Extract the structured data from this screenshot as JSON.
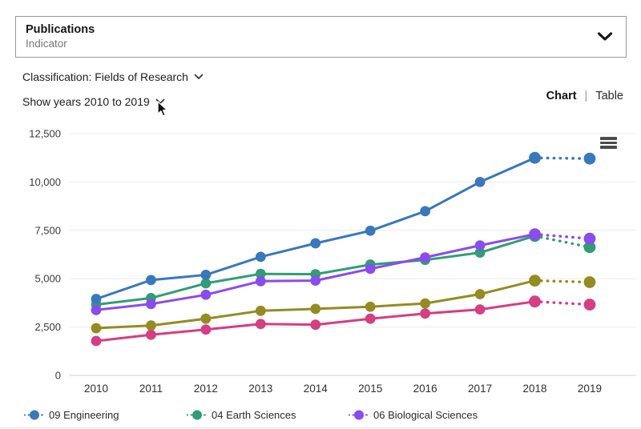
{
  "indicator_panel": {
    "value": "Publications",
    "label": "Indicator"
  },
  "filters": {
    "classification": "Classification: Fields of Research",
    "show_years": "Show years 2010 to 2019"
  },
  "view_toggle": {
    "chart": "Chart",
    "separator": "|",
    "table": "Table",
    "selected": "Chart"
  },
  "icons": {
    "indicator_dropdown": "chevron-down",
    "classification_dropdown": "chevron-down",
    "years_dropdown": "chevron-down",
    "chart_menu": "hamburger-menu",
    "cursor": "arrow-pointer"
  },
  "colors": {
    "grid_line": "#ececec",
    "axis_line": "#ccd3da",
    "menu_icon": "#4b4b4b",
    "border": "#9a9a9a"
  },
  "chart_data": {
    "type": "line",
    "title": "",
    "xlabel": "",
    "ylabel": "",
    "x": [
      2010,
      2011,
      2012,
      2013,
      2014,
      2015,
      2016,
      2017,
      2018,
      2019
    ],
    "yticks": [
      0,
      2500,
      5000,
      7500,
      10000,
      12500
    ],
    "ytick_labels": [
      "0",
      "2,500",
      "5,000",
      "7,500",
      "10,000",
      "12,500"
    ],
    "ylim": [
      0,
      12500
    ],
    "grid": true,
    "legend_position": "bottom",
    "style_note": "final segment 2018-2019 drawn dotted (provisional year); round markers on every point",
    "series": [
      {
        "name": "09 Engineering",
        "color": "#3878bd",
        "in_legend": true,
        "values": [
          3950,
          4930,
          5200,
          6130,
          6830,
          7480,
          8490,
          10000,
          11250,
          11210
        ]
      },
      {
        "name": "04 Earth Sciences",
        "color": "#2f9e74",
        "in_legend": true,
        "values": [
          3660,
          4000,
          4760,
          5250,
          5230,
          5730,
          5970,
          6350,
          7210,
          6630
        ]
      },
      {
        "name": "06 Biological Sciences",
        "color": "#8a4bef",
        "in_legend": true,
        "values": [
          3380,
          3690,
          4170,
          4870,
          4900,
          5510,
          6100,
          6720,
          7300,
          7070
        ]
      },
      {
        "name": "",
        "color": "#948b21",
        "in_legend": false,
        "values": [
          2440,
          2580,
          2930,
          3340,
          3440,
          3550,
          3720,
          4200,
          4900,
          4820
        ]
      },
      {
        "name": "",
        "color": "#d63d82",
        "in_legend": false,
        "values": [
          1780,
          2100,
          2370,
          2660,
          2620,
          2930,
          3200,
          3410,
          3820,
          3660
        ]
      }
    ]
  }
}
